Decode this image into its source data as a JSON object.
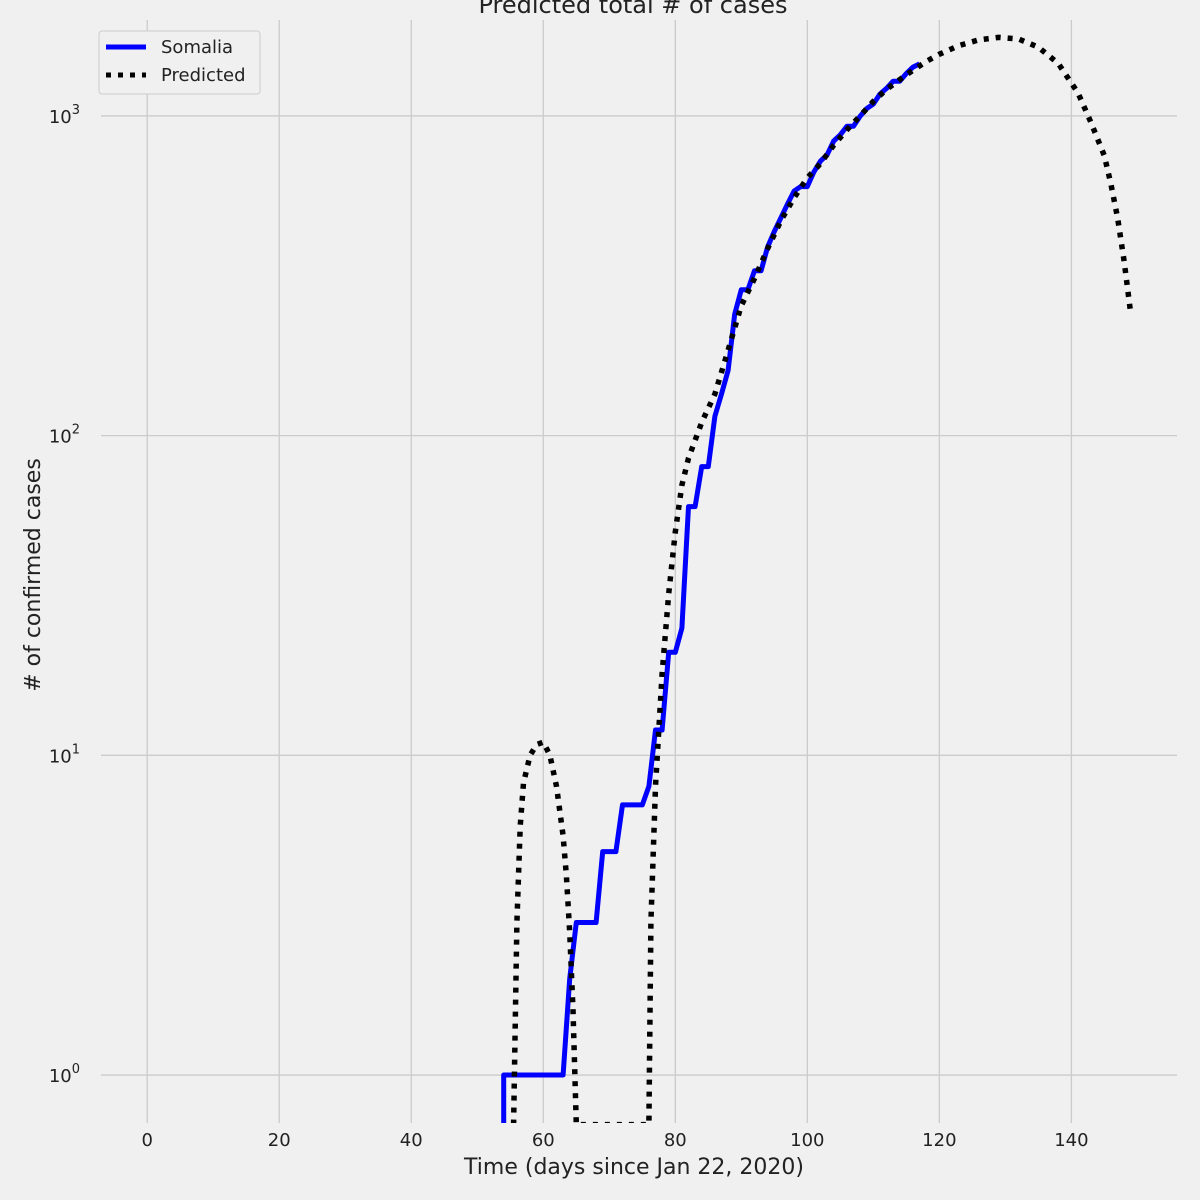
{
  "chart_data": {
    "type": "line",
    "title": "Predicted total # of cases",
    "xlabel": "Time (days since Jan 22, 2020)",
    "ylabel": "# of confirmed cases",
    "xlim": [
      -7,
      156
    ],
    "ylim_log10": [
      -0.15,
      3.3
    ],
    "yscale": "log",
    "grid": true,
    "legend_position": "top-left",
    "x_ticks": [
      0,
      20,
      40,
      60,
      80,
      100,
      120,
      140
    ],
    "y_ticks": [
      {
        "value": 1,
        "base": "10",
        "exp": "0"
      },
      {
        "value": 10,
        "base": "10",
        "exp": "1"
      },
      {
        "value": 100,
        "base": "10",
        "exp": "2"
      },
      {
        "value": 1000,
        "base": "10",
        "exp": "3"
      }
    ],
    "series": [
      {
        "name": "Somalia",
        "color": "#0000ff",
        "style": "solid",
        "points": [
          [
            54,
            0.7
          ],
          [
            54,
            1
          ],
          [
            63,
            1
          ],
          [
            64,
            2
          ],
          [
            65,
            3
          ],
          [
            68,
            3
          ],
          [
            69,
            5
          ],
          [
            71,
            5
          ],
          [
            72,
            7
          ],
          [
            75,
            7
          ],
          [
            76,
            8
          ],
          [
            77,
            12
          ],
          [
            78,
            12
          ],
          [
            79,
            21
          ],
          [
            80,
            21
          ],
          [
            81,
            25
          ],
          [
            82,
            60
          ],
          [
            83,
            60
          ],
          [
            84,
            80
          ],
          [
            85,
            80
          ],
          [
            86,
            115
          ],
          [
            87,
            135
          ],
          [
            88,
            160
          ],
          [
            89,
            240
          ],
          [
            90,
            286
          ],
          [
            91,
            286
          ],
          [
            92,
            328
          ],
          [
            93,
            328
          ],
          [
            94,
            390
          ],
          [
            95,
            435
          ],
          [
            96,
            480
          ],
          [
            97,
            530
          ],
          [
            98,
            582
          ],
          [
            99,
            601
          ],
          [
            100,
            601
          ],
          [
            101,
            668
          ],
          [
            102,
            722
          ],
          [
            103,
            756
          ],
          [
            104,
            835
          ],
          [
            105,
            873
          ],
          [
            106,
            928
          ],
          [
            107,
            928
          ],
          [
            108,
            997
          ],
          [
            109,
            1054
          ],
          [
            110,
            1089
          ],
          [
            111,
            1170
          ],
          [
            112,
            1219
          ],
          [
            113,
            1284
          ],
          [
            114,
            1284
          ],
          [
            115,
            1357
          ],
          [
            116,
            1421
          ],
          [
            117,
            1455
          ]
        ]
      },
      {
        "name": "Predicted",
        "color": "#000000",
        "style": "dotted",
        "points": [
          [
            55.5,
            0.7
          ],
          [
            56,
            3
          ],
          [
            56.5,
            6
          ],
          [
            57,
            8.2
          ],
          [
            58,
            10
          ],
          [
            59,
            10.8
          ],
          [
            60,
            11
          ],
          [
            61,
            10
          ],
          [
            62,
            8
          ],
          [
            63,
            5.6
          ],
          [
            63.5,
            4.2
          ],
          [
            64,
            2.8
          ],
          [
            64.5,
            1.6
          ],
          [
            65,
            0.7
          ],
          [
            76,
            0.7
          ],
          [
            76.3,
            3
          ],
          [
            77,
            8
          ],
          [
            78,
            18
          ],
          [
            79,
            32
          ],
          [
            80,
            50
          ],
          [
            81,
            70
          ],
          [
            82,
            85
          ],
          [
            84,
            110
          ],
          [
            86,
            135
          ],
          [
            88,
            185
          ],
          [
            90,
            255
          ],
          [
            92,
            310
          ],
          [
            94,
            385
          ],
          [
            96,
            470
          ],
          [
            98,
            555
          ],
          [
            100,
            640
          ],
          [
            102,
            710
          ],
          [
            104,
            810
          ],
          [
            106,
            905
          ],
          [
            108,
            1000
          ],
          [
            110,
            1110
          ],
          [
            112,
            1210
          ],
          [
            115,
            1345
          ],
          [
            118,
            1480
          ],
          [
            120,
            1560
          ],
          [
            123,
            1660
          ],
          [
            126,
            1730
          ],
          [
            129,
            1760
          ],
          [
            132,
            1740
          ],
          [
            135,
            1640
          ],
          [
            138,
            1460
          ],
          [
            141,
            1180
          ],
          [
            143,
            950
          ],
          [
            145,
            750
          ],
          [
            146,
            610
          ],
          [
            147,
            480
          ],
          [
            148,
            350
          ],
          [
            149,
            240
          ]
        ]
      }
    ]
  }
}
